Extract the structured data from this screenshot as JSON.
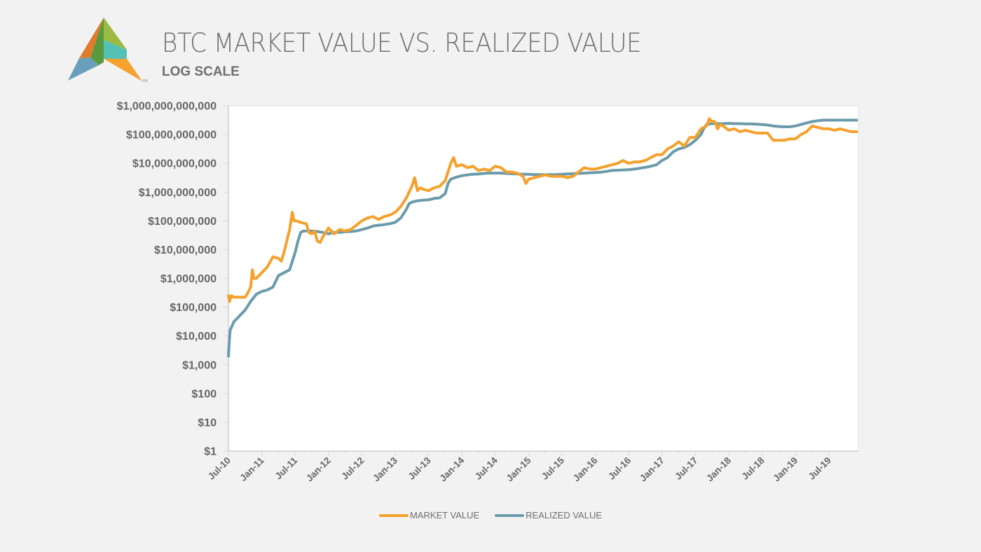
{
  "header": {
    "title": "BTC MARKET VALUE VS. REALIZED VALUE",
    "subtitle": "LOG SCALE",
    "logo": {
      "name": "triangle-logo",
      "mark": "SM"
    }
  },
  "colors": {
    "market": "#f5a12e",
    "realized": "#6b9bab",
    "axis": "#d9d9d9",
    "text": "#666666"
  },
  "chart_data": {
    "type": "line",
    "title": "BTC MARKET VALUE VS. REALIZED VALUE",
    "subtitle": "LOG SCALE",
    "xlabel": "",
    "ylabel": "",
    "y_scale": "log",
    "ylim": [
      1,
      1000000000000
    ],
    "y_ticks": [
      "$1,000,000,000,000",
      "$100,000,000,000",
      "$10,000,000,000",
      "$1,000,000,000",
      "$100,000,000",
      "$10,000,000",
      "$1,000,000",
      "$100,000",
      "$10,000",
      "$1,000",
      "$100",
      "$10",
      "$1"
    ],
    "x_ticks": [
      "Jul-10",
      "Jan-11",
      "Jul-11",
      "Jan-12",
      "Jul-12",
      "Jan-13",
      "Jul-13",
      "Jan-14",
      "Jul-14",
      "Jan-15",
      "Jul-15",
      "Jan-16",
      "Jul-16",
      "Jan-17",
      "Jul-17",
      "Jan-18",
      "Jul-18",
      "Jan-19",
      "Jul-19"
    ],
    "x_range_months_since_jul10": [
      0,
      113
    ],
    "grid": false,
    "legend_position": "bottom",
    "x_unit": "months since Jul-10",
    "y_unit": "log10 USD",
    "series": [
      {
        "name": "MARKET VALUE",
        "points": [
          [
            0,
            5.4
          ],
          [
            0.2,
            5.2
          ],
          [
            0.5,
            5.4
          ],
          [
            1,
            5.35
          ],
          [
            2,
            5.35
          ],
          [
            3,
            5.35
          ],
          [
            3.5,
            5.5
          ],
          [
            4,
            5.7
          ],
          [
            4.3,
            6.3
          ],
          [
            4.6,
            6.0
          ],
          [
            5,
            6.0
          ],
          [
            6,
            6.2
          ],
          [
            7,
            6.4
          ],
          [
            8,
            6.75
          ],
          [
            9,
            6.7
          ],
          [
            9.5,
            6.6
          ],
          [
            10,
            6.9
          ],
          [
            10.5,
            7.3
          ],
          [
            11,
            7.7
          ],
          [
            11.5,
            8.3
          ],
          [
            11.8,
            8.0
          ],
          [
            12.2,
            8.0
          ],
          [
            13,
            7.95
          ],
          [
            14,
            7.9
          ],
          [
            14.5,
            7.6
          ],
          [
            15,
            7.55
          ],
          [
            15.5,
            7.65
          ],
          [
            16,
            7.3
          ],
          [
            16.5,
            7.25
          ],
          [
            17,
            7.45
          ],
          [
            18,
            7.75
          ],
          [
            18.5,
            7.65
          ],
          [
            19,
            7.55
          ],
          [
            20,
            7.7
          ],
          [
            21,
            7.65
          ],
          [
            22,
            7.7
          ],
          [
            23,
            7.85
          ],
          [
            24,
            8.0
          ],
          [
            25,
            8.1
          ],
          [
            26,
            8.15
          ],
          [
            27,
            8.05
          ],
          [
            28,
            8.15
          ],
          [
            29,
            8.2
          ],
          [
            30,
            8.3
          ],
          [
            31,
            8.5
          ],
          [
            32,
            8.8
          ],
          [
            33,
            9.2
          ],
          [
            33.5,
            9.5
          ],
          [
            34,
            9.05
          ],
          [
            34.5,
            9.15
          ],
          [
            35,
            9.1
          ],
          [
            36,
            9.05
          ],
          [
            37,
            9.15
          ],
          [
            38,
            9.2
          ],
          [
            39,
            9.4
          ],
          [
            40,
            10.0
          ],
          [
            40.5,
            10.2
          ],
          [
            41,
            9.9
          ],
          [
            42,
            9.95
          ],
          [
            43,
            9.85
          ],
          [
            44,
            9.9
          ],
          [
            45,
            9.75
          ],
          [
            46,
            9.8
          ],
          [
            47,
            9.75
          ],
          [
            48,
            9.9
          ],
          [
            49,
            9.85
          ],
          [
            50,
            9.7
          ],
          [
            51,
            9.7
          ],
          [
            52,
            9.65
          ],
          [
            53,
            9.55
          ],
          [
            53.5,
            9.3
          ],
          [
            54,
            9.45
          ],
          [
            55,
            9.5
          ],
          [
            56,
            9.55
          ],
          [
            57,
            9.6
          ],
          [
            58,
            9.55
          ],
          [
            59,
            9.55
          ],
          [
            60,
            9.55
          ],
          [
            61,
            9.5
          ],
          [
            62,
            9.55
          ],
          [
            63,
            9.7
          ],
          [
            64,
            9.85
          ],
          [
            65,
            9.8
          ],
          [
            66,
            9.8
          ],
          [
            67,
            9.85
          ],
          [
            68,
            9.9
          ],
          [
            69,
            9.95
          ],
          [
            70,
            10.0
          ],
          [
            71,
            10.1
          ],
          [
            72,
            10.0
          ],
          [
            73,
            10.05
          ],
          [
            74,
            10.05
          ],
          [
            75,
            10.1
          ],
          [
            76,
            10.2
          ],
          [
            77,
            10.3
          ],
          [
            78,
            10.3
          ],
          [
            79,
            10.5
          ],
          [
            80,
            10.6
          ],
          [
            81,
            10.75
          ],
          [
            82,
            10.6
          ],
          [
            83,
            10.9
          ],
          [
            84,
            10.9
          ],
          [
            85,
            11.2
          ],
          [
            86,
            11.3
          ],
          [
            86.5,
            11.55
          ],
          [
            87,
            11.45
          ],
          [
            87.5,
            11.45
          ],
          [
            88,
            11.2
          ],
          [
            88.5,
            11.35
          ],
          [
            89,
            11.3
          ],
          [
            90,
            11.15
          ],
          [
            91,
            11.2
          ],
          [
            92,
            11.1
          ],
          [
            93,
            11.15
          ],
          [
            94,
            11.1
          ],
          [
            95,
            11.05
          ],
          [
            96,
            11.05
          ],
          [
            97,
            11.05
          ],
          [
            98,
            10.8
          ],
          [
            99,
            10.8
          ],
          [
            100,
            10.8
          ],
          [
            101,
            10.85
          ],
          [
            102,
            10.85
          ],
          [
            103,
            11.0
          ],
          [
            104,
            11.1
          ],
          [
            105,
            11.3
          ],
          [
            106,
            11.25
          ],
          [
            107,
            11.2
          ],
          [
            108,
            11.2
          ],
          [
            109,
            11.15
          ],
          [
            110,
            11.2
          ],
          [
            111,
            11.15
          ],
          [
            112,
            11.1
          ],
          [
            113,
            11.1
          ]
        ]
      },
      {
        "name": "REALIZED VALUE",
        "points": [
          [
            0,
            3.3
          ],
          [
            0.15,
            3.8
          ],
          [
            0.3,
            4.2
          ],
          [
            1,
            4.5
          ],
          [
            2,
            4.7
          ],
          [
            3,
            4.9
          ],
          [
            4,
            5.2
          ],
          [
            5,
            5.45
          ],
          [
            6,
            5.55
          ],
          [
            7,
            5.6
          ],
          [
            8,
            5.7
          ],
          [
            9,
            6.1
          ],
          [
            10,
            6.2
          ],
          [
            11,
            6.3
          ],
          [
            11.5,
            6.6
          ],
          [
            12,
            6.9
          ],
          [
            12.5,
            7.3
          ],
          [
            13,
            7.6
          ],
          [
            13.5,
            7.65
          ],
          [
            14,
            7.65
          ],
          [
            15,
            7.65
          ],
          [
            16,
            7.63
          ],
          [
            17,
            7.6
          ],
          [
            18,
            7.55
          ],
          [
            19,
            7.6
          ],
          [
            20,
            7.6
          ],
          [
            21,
            7.62
          ],
          [
            22,
            7.63
          ],
          [
            23,
            7.65
          ],
          [
            24,
            7.7
          ],
          [
            25,
            7.75
          ],
          [
            26,
            7.82
          ],
          [
            27,
            7.85
          ],
          [
            28,
            7.87
          ],
          [
            29,
            7.9
          ],
          [
            30,
            7.95
          ],
          [
            31,
            8.1
          ],
          [
            32,
            8.4
          ],
          [
            32.5,
            8.6
          ],
          [
            33,
            8.65
          ],
          [
            34,
            8.7
          ],
          [
            35,
            8.72
          ],
          [
            36,
            8.73
          ],
          [
            37,
            8.78
          ],
          [
            38,
            8.8
          ],
          [
            39,
            8.95
          ],
          [
            39.5,
            9.3
          ],
          [
            40,
            9.45
          ],
          [
            41,
            9.52
          ],
          [
            42,
            9.57
          ],
          [
            43,
            9.6
          ],
          [
            44,
            9.62
          ],
          [
            45,
            9.63
          ],
          [
            46,
            9.65
          ],
          [
            47,
            9.66
          ],
          [
            48,
            9.66
          ],
          [
            49,
            9.66
          ],
          [
            50,
            9.65
          ],
          [
            51,
            9.64
          ],
          [
            52,
            9.63
          ],
          [
            53,
            9.62
          ],
          [
            54,
            9.62
          ],
          [
            55,
            9.61
          ],
          [
            56,
            9.61
          ],
          [
            57,
            9.61
          ],
          [
            58,
            9.61
          ],
          [
            59,
            9.61
          ],
          [
            60,
            9.62
          ],
          [
            61,
            9.63
          ],
          [
            62,
            9.64
          ],
          [
            63,
            9.65
          ],
          [
            64,
            9.66
          ],
          [
            65,
            9.67
          ],
          [
            66,
            9.68
          ],
          [
            67,
            9.69
          ],
          [
            68,
            9.72
          ],
          [
            69,
            9.75
          ],
          [
            70,
            9.76
          ],
          [
            71,
            9.77
          ],
          [
            72,
            9.78
          ],
          [
            73,
            9.8
          ],
          [
            74,
            9.83
          ],
          [
            75,
            9.86
          ],
          [
            76,
            9.9
          ],
          [
            77,
            9.95
          ],
          [
            78,
            10.1
          ],
          [
            79,
            10.2
          ],
          [
            80,
            10.4
          ],
          [
            81,
            10.5
          ],
          [
            82,
            10.55
          ],
          [
            83,
            10.65
          ],
          [
            84,
            10.8
          ],
          [
            85,
            11.0
          ],
          [
            85.5,
            11.2
          ],
          [
            86,
            11.35
          ],
          [
            87,
            11.38
          ],
          [
            88,
            11.38
          ],
          [
            89,
            11.38
          ],
          [
            90,
            11.39
          ],
          [
            91,
            11.38
          ],
          [
            92,
            11.38
          ],
          [
            93,
            11.37
          ],
          [
            94,
            11.37
          ],
          [
            95,
            11.36
          ],
          [
            96,
            11.35
          ],
          [
            97,
            11.33
          ],
          [
            98,
            11.3
          ],
          [
            99,
            11.28
          ],
          [
            100,
            11.27
          ],
          [
            101,
            11.27
          ],
          [
            102,
            11.3
          ],
          [
            103,
            11.35
          ],
          [
            104,
            11.4
          ],
          [
            105,
            11.45
          ],
          [
            106,
            11.48
          ],
          [
            107,
            11.5
          ],
          [
            108,
            11.5
          ],
          [
            109,
            11.5
          ],
          [
            110,
            11.5
          ],
          [
            111,
            11.5
          ],
          [
            112,
            11.5
          ],
          [
            113,
            11.5
          ]
        ]
      }
    ]
  },
  "legend": {
    "items": [
      {
        "label": "MARKET VALUE"
      },
      {
        "label": "REALIZED VALUE"
      }
    ]
  }
}
